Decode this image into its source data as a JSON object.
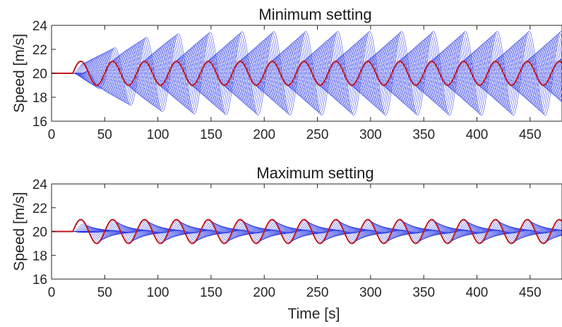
{
  "chart_data": [
    {
      "type": "line",
      "title": "Minimum setting",
      "xlabel": "",
      "ylabel": "Speed [m/s]",
      "xlim": [
        0,
        480
      ],
      "ylim": [
        16,
        24
      ],
      "xticks": [
        "0",
        "50",
        "100",
        "150",
        "200",
        "250",
        "300",
        "350",
        "400",
        "450"
      ],
      "yticks": [
        "16",
        "18",
        "20",
        "22",
        "24"
      ],
      "grid": false,
      "colors": {
        "leader": "#c0161e",
        "followers": "#1f2ee6"
      },
      "series": [
        {
          "role": "leader",
          "description": "sinusoid about 20 m/s starting at t=20 s",
          "baseline": 20,
          "start_time": 20,
          "amplitude": 1.0,
          "period": 30
        },
        {
          "role": "followers",
          "count": 20,
          "max_amplitude": 3.5,
          "behavior": "amplifying"
        }
      ]
    },
    {
      "type": "line",
      "title": "Maximum setting",
      "xlabel": "Time [s]",
      "ylabel": "Speed [m/s]",
      "xlim": [
        0,
        480
      ],
      "ylim": [
        16,
        24
      ],
      "xticks": [
        "0",
        "50",
        "100",
        "150",
        "200",
        "250",
        "300",
        "350",
        "400",
        "450"
      ],
      "yticks": [
        "16",
        "18",
        "20",
        "22",
        "24"
      ],
      "grid": false,
      "colors": {
        "leader": "#c0161e",
        "followers": "#1f2ee6"
      },
      "series": [
        {
          "role": "leader",
          "description": "sinusoid about 20 m/s starting at t=20 s",
          "baseline": 20,
          "start_time": 20,
          "amplitude": 1.0,
          "period": 30
        },
        {
          "role": "followers",
          "count": 20,
          "max_amplitude": 0.9,
          "behavior": "damping"
        }
      ]
    }
  ]
}
